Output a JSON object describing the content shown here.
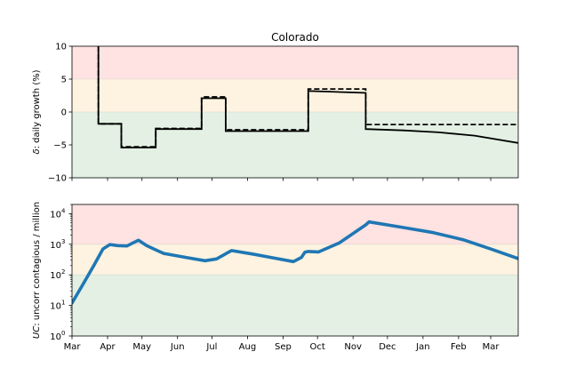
{
  "chart_data": [
    {
      "type": "line",
      "title": "Colorado",
      "ylabel_symbol": "δ",
      "ylabel_text": ": daily growth (%)",
      "ylim": [
        -10,
        10
      ],
      "yticks": [
        {
          "value": 10,
          "label": "10"
        },
        {
          "value": 5,
          "label": "5"
        },
        {
          "value": 0,
          "label": "0"
        },
        {
          "value": -5,
          "label": "−5"
        },
        {
          "value": -10,
          "label": "−10"
        }
      ],
      "bands": [
        {
          "from": 5,
          "to": 10,
          "color": "#ffe2e2"
        },
        {
          "from": 0,
          "to": 5,
          "color": "#fdf3e0"
        },
        {
          "from": -10,
          "to": 0,
          "color": "#e3f0e3"
        }
      ],
      "series": [
        {
          "style": "solid",
          "color": "#000000",
          "x": [
            "2020-03-24",
            "2020-03-24",
            "2020-04-13",
            "2020-04-13",
            "2020-05-13",
            "2020-05-13",
            "2020-06-22",
            "2020-06-22",
            "2020-07-13",
            "2020-07-13",
            "2020-09-23",
            "2020-09-23",
            "2020-11-12",
            "2020-11-12",
            "2020-12-15",
            "2021-01-15",
            "2021-02-15",
            "2021-03-25"
          ],
          "y": [
            10,
            -1.8,
            -1.8,
            -5.4,
            -5.4,
            -2.6,
            -2.6,
            2.1,
            2.1,
            -2.9,
            -2.9,
            3.2,
            2.9,
            -2.6,
            -2.8,
            -3.1,
            -3.6,
            -4.7
          ]
        },
        {
          "style": "dashed",
          "color": "#000000",
          "x": [
            "2020-03-24",
            "2020-03-24",
            "2020-04-13",
            "2020-04-13",
            "2020-05-13",
            "2020-05-13",
            "2020-06-22",
            "2020-06-22",
            "2020-07-13",
            "2020-07-13",
            "2020-09-23",
            "2020-09-23",
            "2020-11-12",
            "2020-11-12",
            "2021-03-25"
          ],
          "y": [
            10,
            -1.8,
            -1.8,
            -5.3,
            -5.3,
            -2.5,
            -2.5,
            2.3,
            2.3,
            -2.7,
            -2.7,
            3.5,
            3.5,
            -1.9,
            -1.9
          ]
        }
      ]
    },
    {
      "type": "line",
      "yscale": "log",
      "ylabel_symbol": "UC",
      "ylabel_text": ": uncorr contagious / million",
      "ylim": [
        1,
        20000
      ],
      "yticks": [
        {
          "value": 1,
          "label": "10",
          "exp": "0"
        },
        {
          "value": 10,
          "label": "10",
          "exp": "1"
        },
        {
          "value": 100,
          "label": "10",
          "exp": "2"
        },
        {
          "value": 1000,
          "label": "10",
          "exp": "3"
        },
        {
          "value": 10000,
          "label": "10",
          "exp": "4"
        }
      ],
      "bands": [
        {
          "from": 1000,
          "to": 20000,
          "color": "#ffe2e2"
        },
        {
          "from": 100,
          "to": 1000,
          "color": "#fdf3e0"
        },
        {
          "from": 1,
          "to": 100,
          "color": "#e3f0e3"
        }
      ],
      "x_categories": [
        "Mar",
        "Apr",
        "May",
        "Jun",
        "Jul",
        "Aug",
        "Sep",
        "Oct",
        "Nov",
        "Dec",
        "Jan",
        "Feb",
        "Mar"
      ],
      "x_tick_dates": [
        "2020-03-01",
        "2020-04-01",
        "2020-05-01",
        "2020-06-01",
        "2020-07-01",
        "2020-08-01",
        "2020-09-01",
        "2020-10-01",
        "2020-11-01",
        "2020-12-01",
        "2021-01-01",
        "2021-02-01",
        "2021-03-01"
      ],
      "series": [
        {
          "style": "solid",
          "color": "#1f77b4",
          "x": [
            "2020-03-01",
            "2020-03-10",
            "2020-03-20",
            "2020-03-28",
            "2020-04-03",
            "2020-04-10",
            "2020-04-18",
            "2020-04-24",
            "2020-04-28",
            "2020-05-05",
            "2020-05-12",
            "2020-05-20",
            "2020-05-28",
            "2020-06-10",
            "2020-06-25",
            "2020-07-05",
            "2020-07-18",
            "2020-08-05",
            "2020-08-25",
            "2020-09-10",
            "2020-09-17",
            "2020-09-20",
            "2020-09-23",
            "2020-10-02",
            "2020-10-20",
            "2020-11-12",
            "2020-11-15",
            "2020-11-20",
            "2020-12-15",
            "2021-01-10",
            "2021-02-05",
            "2021-03-01",
            "2021-03-25"
          ],
          "y": [
            12,
            45,
            200,
            700,
            980,
            900,
            880,
            1150,
            1350,
            900,
            680,
            500,
            440,
            360,
            290,
            330,
            620,
            480,
            350,
            270,
            370,
            550,
            580,
            560,
            1100,
            4300,
            5400,
            5000,
            3500,
            2400,
            1400,
            700,
            340
          ]
        }
      ]
    }
  ]
}
